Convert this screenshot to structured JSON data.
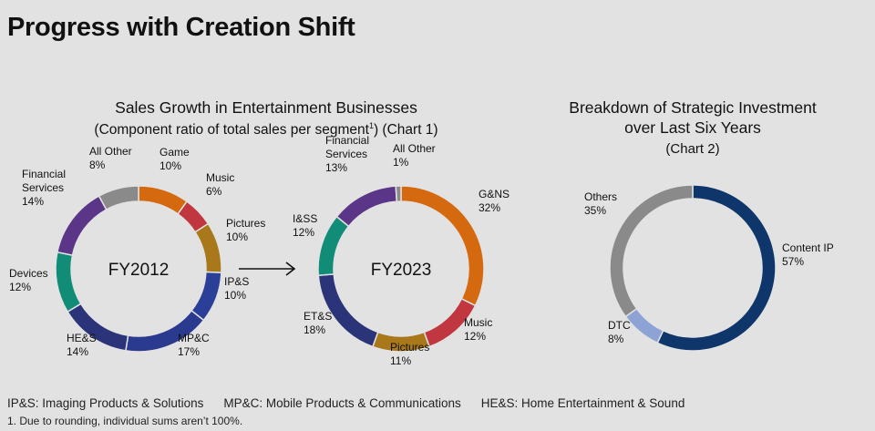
{
  "page_title": "Progress with Creation Shift",
  "chart1": {
    "title": "Sales Growth in Entertainment Businesses",
    "subtitle_pre": "(Component ratio of total sales per segment",
    "subtitle_sup": "1",
    "subtitle_post": ") (Chart 1)"
  },
  "chart2": {
    "title_line1": "Breakdown of Strategic Investment",
    "title_line2": "over Last Six Years",
    "subtitle": "(Chart 2)"
  },
  "chart_data": [
    {
      "type": "pie",
      "variant": "donut",
      "center_label": "FY2012",
      "segments": [
        {
          "name": "Game",
          "value": 10,
          "label": "10%",
          "color": "#d4690f"
        },
        {
          "name": "Music",
          "value": 6,
          "label": "6%",
          "color": "#c0373f"
        },
        {
          "name": "Pictures",
          "value": 10,
          "label": "10%",
          "color": "#a8781a"
        },
        {
          "name": "IP&S",
          "value": 10,
          "label": "10%",
          "color": "#2a3f97"
        },
        {
          "name": "MP&C",
          "value": 17,
          "label": "17%",
          "color": "#2a3a8f"
        },
        {
          "name": "HE&S",
          "value": 14,
          "label": "14%",
          "color": "#2b3479"
        },
        {
          "name": "Devices",
          "value": 12,
          "label": "12%",
          "color": "#118c76"
        },
        {
          "name": "Financial Services",
          "name_lines": [
            "Financial",
            "Services"
          ],
          "value": 14,
          "label": "14%",
          "color": "#5b3587"
        },
        {
          "name": "All Other",
          "value": 8,
          "label": "8%",
          "color": "#8a8a8a"
        }
      ]
    },
    {
      "type": "pie",
      "variant": "donut",
      "center_label": "FY2023",
      "segments": [
        {
          "name": "G&NS",
          "value": 32,
          "label": "32%",
          "color": "#d4690f"
        },
        {
          "name": "Music",
          "value": 12,
          "label": "12%",
          "color": "#c0373f"
        },
        {
          "name": "Pictures",
          "value": 11,
          "label": "11%",
          "color": "#a8781a"
        },
        {
          "name": "ET&S",
          "value": 18,
          "label": "18%",
          "color": "#2b3479"
        },
        {
          "name": "I&SS",
          "value": 12,
          "label": "12%",
          "color": "#118c76"
        },
        {
          "name": "Financial Services",
          "name_lines": [
            "Financial",
            "Services"
          ],
          "value": 13,
          "label": "13%",
          "color": "#5b3587"
        },
        {
          "name": "All Other",
          "value": 1,
          "label": "1%",
          "color": "#8a8a8a"
        }
      ]
    },
    {
      "type": "pie",
      "variant": "donut",
      "center_label": "",
      "segments": [
        {
          "name": "Content IP",
          "value": 57,
          "label": "57%",
          "color": "#0f366b"
        },
        {
          "name": "DTC",
          "value": 8,
          "label": "8%",
          "color": "#8da3d6"
        },
        {
          "name": "Others",
          "value": 35,
          "label": "35%",
          "color": "#8a8a8a"
        }
      ]
    }
  ],
  "legend_abbrev": [
    "IP&S: Imaging Products & Solutions",
    "MP&C: Mobile Products & Communications",
    "HE&S: Home Entertainment & Sound"
  ],
  "footnote": "1. Due to rounding, individual sums aren’t 100%."
}
